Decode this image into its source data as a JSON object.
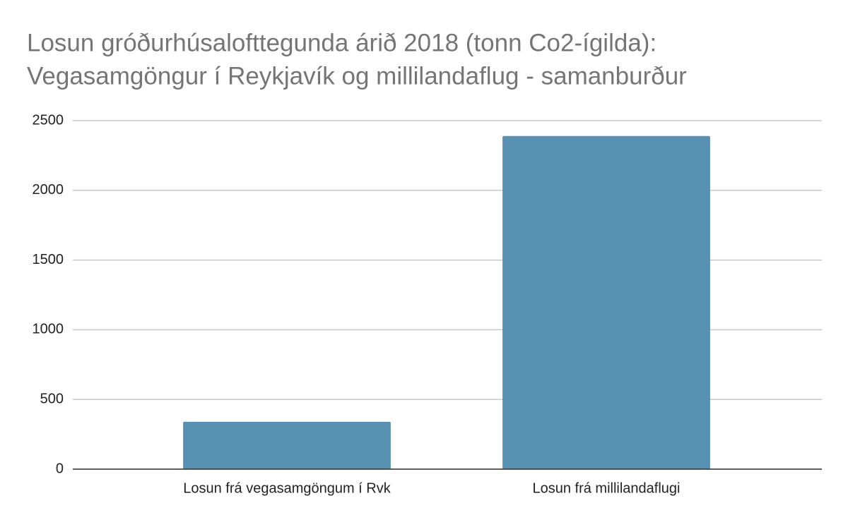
{
  "chart_data": {
    "type": "bar",
    "title": [
      "Losun gróðurhúsalofttegunda árið 2018 (tonn Co2-ígilda):",
      "Vegasamgöngur í Reykjavík og millilandaflug - samanburður"
    ],
    "categories": [
      "Losun frá vegasamgöngum í Rvk",
      "Losun frá millilandaflugi"
    ],
    "values": [
      340,
      2390
    ],
    "color": "#5790b0",
    "ylim": [
      0,
      2500
    ],
    "yticks": [
      0,
      500,
      1000,
      1500,
      2000,
      2500
    ],
    "grid": true
  }
}
